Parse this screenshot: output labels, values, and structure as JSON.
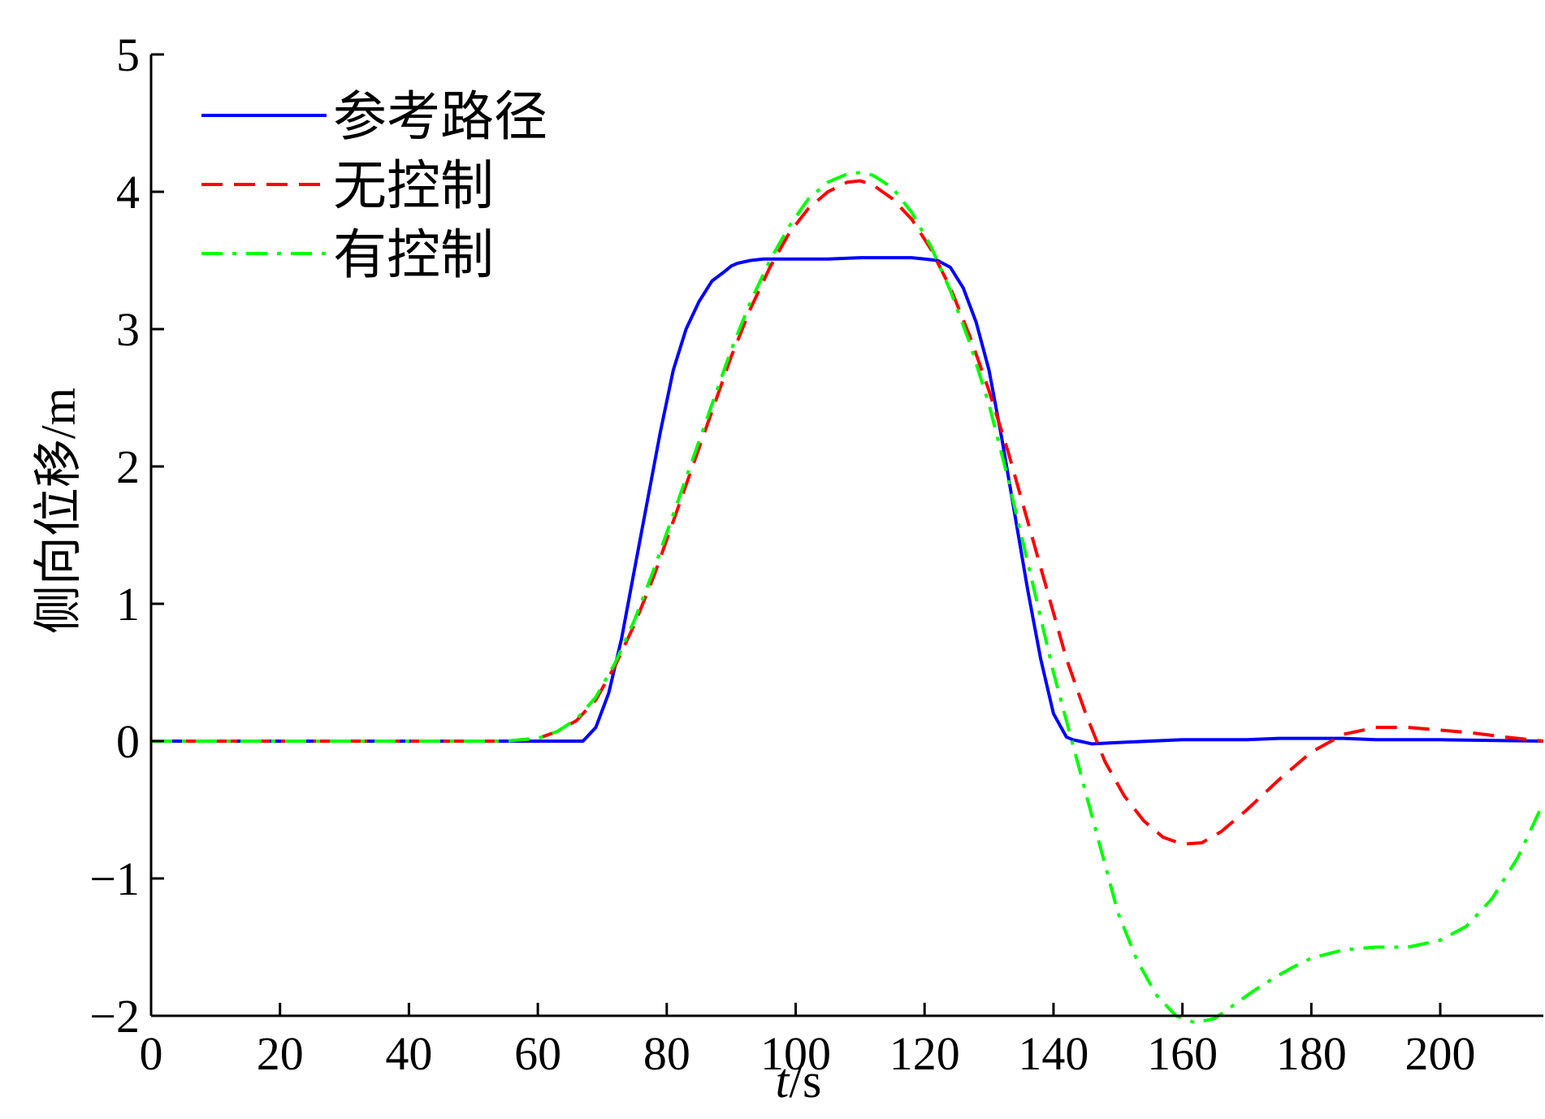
{
  "chart_data": {
    "type": "line",
    "xlabel": "t/s",
    "xlabel_italic": "t",
    "xlabel_unit": "/s",
    "ylabel": "侧向位移/m",
    "xlim": [
      0,
      216
    ],
    "ylim": [
      -2,
      5
    ],
    "xticks": [
      0,
      20,
      40,
      60,
      80,
      100,
      120,
      140,
      160,
      180,
      200
    ],
    "yticks": [
      -2,
      -1,
      0,
      1,
      2,
      3,
      4,
      5
    ],
    "ytick_labels": [
      "−2",
      "−1",
      "0",
      "1",
      "2",
      "3",
      "4",
      "5"
    ],
    "grid": false,
    "legend_position": "top-left",
    "series": [
      {
        "name": "参考路径",
        "color": "#0000ff",
        "dash": "solid",
        "x": [
          0,
          60,
          67,
          69,
          71,
          73,
          75,
          77,
          79,
          81,
          83,
          85,
          87,
          89,
          90,
          91,
          93,
          95,
          100,
          105,
          110,
          115,
          118,
          120,
          122,
          124,
          126,
          128,
          130,
          132,
          134,
          136,
          138,
          140,
          142,
          143,
          144,
          146,
          150,
          160,
          170,
          175,
          180,
          185,
          190,
          200,
          216
        ],
        "y": [
          0,
          0,
          0,
          0.1,
          0.35,
          0.75,
          1.25,
          1.75,
          2.25,
          2.7,
          3.0,
          3.2,
          3.35,
          3.42,
          3.46,
          3.48,
          3.5,
          3.51,
          3.51,
          3.51,
          3.52,
          3.52,
          3.52,
          3.51,
          3.5,
          3.45,
          3.3,
          3.05,
          2.7,
          2.2,
          1.65,
          1.1,
          0.6,
          0.2,
          0.03,
          0.01,
          0,
          -0.02,
          -0.01,
          0.01,
          0.01,
          0.02,
          0.02,
          0.02,
          0.01,
          0.01,
          0
        ]
      },
      {
        "name": "无控制",
        "color": "#ff0000",
        "dash": "dashed",
        "x": [
          0,
          55,
          60,
          63,
          66,
          69,
          72,
          75,
          78,
          81,
          84,
          87,
          90,
          93,
          96,
          99,
          102,
          105,
          108,
          110,
          112,
          115,
          118,
          121,
          124,
          127,
          130,
          133,
          136,
          139,
          142,
          145,
          148,
          151,
          154,
          157,
          160,
          163,
          166,
          170,
          175,
          180,
          185,
          190,
          195,
          200,
          205,
          210,
          216
        ],
        "y": [
          0,
          0,
          0.02,
          0.07,
          0.15,
          0.3,
          0.55,
          0.85,
          1.2,
          1.6,
          2.0,
          2.4,
          2.8,
          3.15,
          3.45,
          3.7,
          3.88,
          4.0,
          4.07,
          4.08,
          4.05,
          3.95,
          3.8,
          3.58,
          3.3,
          2.95,
          2.55,
          2.1,
          1.6,
          1.1,
          0.6,
          0.2,
          -0.15,
          -0.4,
          -0.58,
          -0.7,
          -0.75,
          -0.74,
          -0.66,
          -0.5,
          -0.28,
          -0.08,
          0.05,
          0.1,
          0.1,
          0.08,
          0.06,
          0.03,
          0
        ]
      },
      {
        "name": "有控制",
        "color": "#00ff00",
        "dash": "dashdot",
        "x": [
          0,
          55,
          60,
          63,
          66,
          69,
          72,
          75,
          78,
          81,
          84,
          87,
          90,
          93,
          96,
          99,
          102,
          105,
          108,
          110,
          112,
          115,
          118,
          121,
          124,
          127,
          130,
          133,
          136,
          138,
          140,
          142,
          144,
          146,
          148,
          150,
          153,
          156,
          159,
          162,
          165,
          168,
          171,
          174,
          177,
          180,
          185,
          190,
          195,
          200,
          204,
          208,
          212,
          216
        ],
        "y": [
          0,
          0,
          0.02,
          0.07,
          0.16,
          0.32,
          0.57,
          0.88,
          1.25,
          1.65,
          2.05,
          2.45,
          2.85,
          3.2,
          3.5,
          3.75,
          3.95,
          4.07,
          4.13,
          4.14,
          4.12,
          4.03,
          3.85,
          3.6,
          3.28,
          2.9,
          2.45,
          1.9,
          1.3,
          0.9,
          0.5,
          0.15,
          -0.2,
          -0.55,
          -0.9,
          -1.25,
          -1.6,
          -1.85,
          -2.0,
          -2.05,
          -2.02,
          -1.92,
          -1.82,
          -1.73,
          -1.65,
          -1.58,
          -1.52,
          -1.5,
          -1.5,
          -1.45,
          -1.35,
          -1.15,
          -0.85,
          -0.45
        ]
      }
    ]
  }
}
